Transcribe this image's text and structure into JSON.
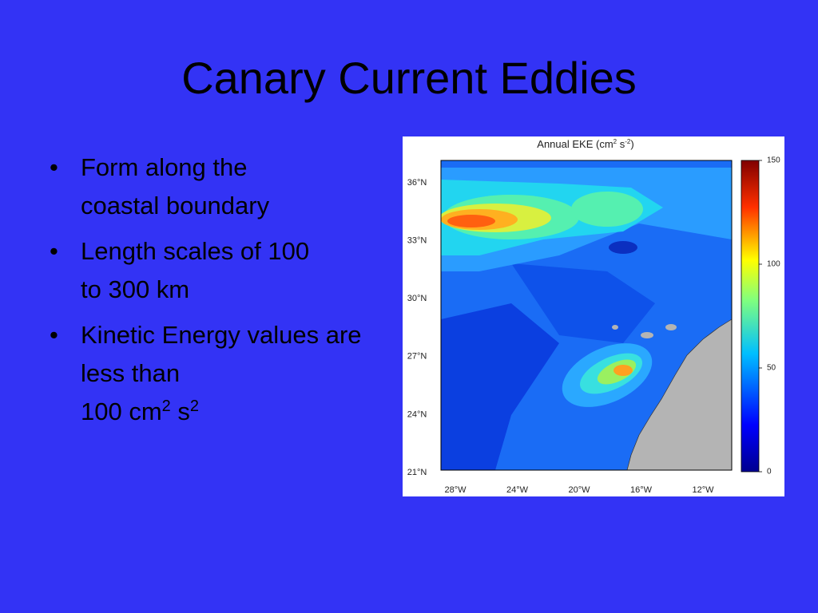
{
  "title": "Canary Current Eddies",
  "bullets": [
    [
      "Form along the",
      "coastal boundary"
    ],
    [
      "Length scales of 100",
      "to 300 km"
    ],
    [
      "Kinetic Energy values are less than",
      "100 cm",
      "2",
      " s",
      "2"
    ]
  ],
  "figure": {
    "title": [
      "Annual EKE (cm",
      "2",
      " s",
      "-2",
      ")"
    ],
    "lat_labels": [
      "36°N",
      "33°N",
      "30°N",
      "27°N",
      "24°N",
      "21°N"
    ],
    "lon_labels": [
      "28°W",
      "24°W",
      "20°W",
      "16°W",
      "12°W"
    ],
    "colorbar": {
      "lim": [
        0,
        150
      ],
      "ticks": [
        0,
        50,
        100,
        150
      ]
    }
  }
}
